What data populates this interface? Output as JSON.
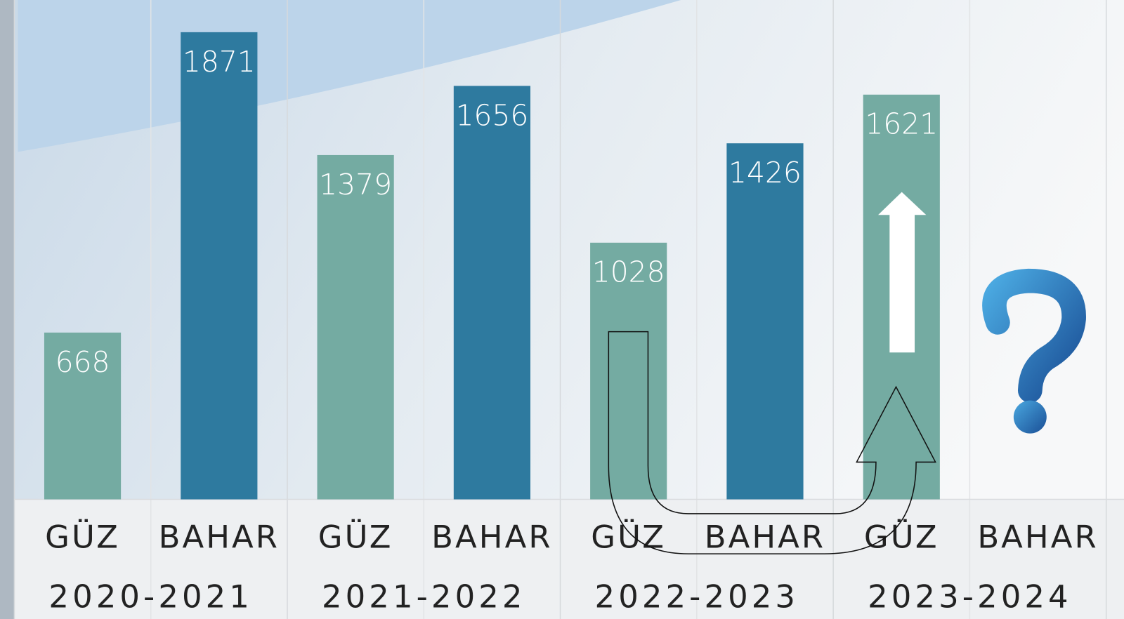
{
  "chart_data": {
    "type": "bar",
    "categories": [
      "GÜZ",
      "BAHAR",
      "GÜZ",
      "BAHAR",
      "GÜZ",
      "BAHAR",
      "GÜZ",
      "BAHAR"
    ],
    "groups": [
      "2020-2021",
      "2021-2022",
      "2022-2023",
      "2023-2024"
    ],
    "values": [
      668,
      1871,
      1379,
      1656,
      1028,
      1426,
      1621,
      null
    ],
    "colors": [
      "#74aba2",
      "#2e7a9f",
      "#74aba2",
      "#2e7a9f",
      "#74aba2",
      "#2e7a9f",
      "#74aba2",
      "#2e7a9f"
    ],
    "ylim": [
      0,
      2000
    ]
  }
}
